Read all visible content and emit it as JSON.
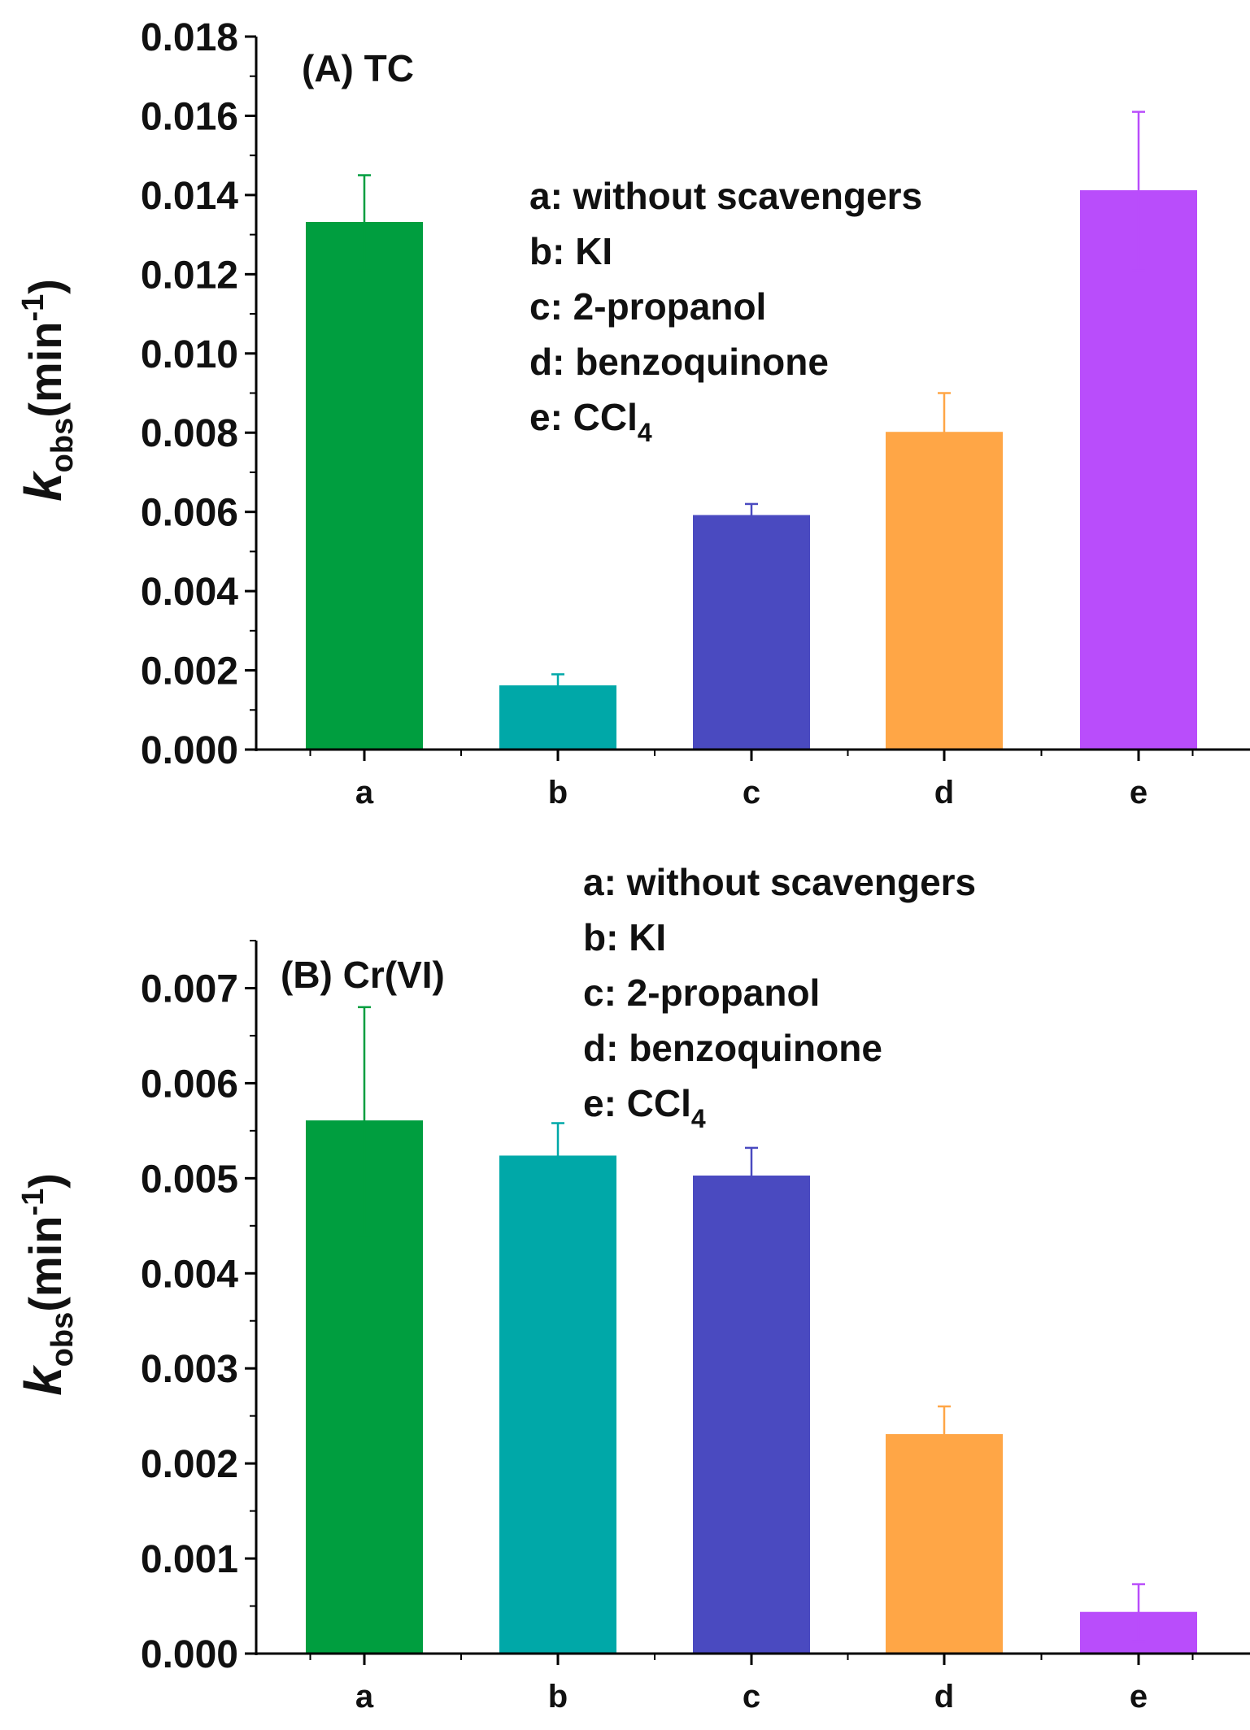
{
  "chart_data": [
    {
      "type": "bar",
      "panel_label": "(A) TC",
      "categories": [
        "a",
        "b",
        "c",
        "d",
        "e"
      ],
      "values": [
        0.0133,
        0.0016,
        0.0059,
        0.008,
        0.0141
      ],
      "errors": [
        0.0012,
        0.0003,
        0.0003,
        0.001,
        0.002
      ],
      "colors": [
        "#009e3f",
        "#00a8a8",
        "#4a4ac0",
        "#ffa646",
        "#b94dfb"
      ],
      "ylabel": {
        "main": "k",
        "sub": "obs",
        "unit_open": "(min",
        "sup": "-1",
        "unit_close": ")"
      },
      "ylim": [
        0,
        0.018
      ],
      "yticks": [
        0.0,
        0.002,
        0.004,
        0.006,
        0.008,
        0.01,
        0.012,
        0.014,
        0.016,
        0.018
      ],
      "ytick_labels": [
        "0.000",
        "0.002",
        "0.004",
        "0.006",
        "0.008",
        "0.010",
        "0.012",
        "0.014",
        "0.016",
        "0.018"
      ],
      "legend": [
        "a: without scavengers",
        "b: KI",
        "c: 2-propanol",
        "d: benzoquinone",
        "e: CCl"
      ],
      "legend_sub": "4",
      "legend_position": "top-right"
    },
    {
      "type": "bar",
      "panel_label": "(B) Cr(VI)",
      "categories": [
        "a",
        "b",
        "c",
        "d",
        "e"
      ],
      "values": [
        0.0056,
        0.00523,
        0.00502,
        0.0023,
        0.00043
      ],
      "errors": [
        0.0012,
        0.00035,
        0.0003,
        0.0003,
        0.0003
      ],
      "colors": [
        "#009e3f",
        "#00a8a8",
        "#4a4ac0",
        "#ffa646",
        "#b94dfb"
      ],
      "ylabel": {
        "main": "k",
        "sub": "obs",
        "unit_open": "(min",
        "sup": "-1",
        "unit_close": ")"
      },
      "ylim": [
        0,
        0.0075
      ],
      "yticks": [
        0.0,
        0.001,
        0.002,
        0.003,
        0.004,
        0.005,
        0.006,
        0.007
      ],
      "ytick_labels": [
        "0.000",
        "0.001",
        "0.002",
        "0.003",
        "0.004",
        "0.005",
        "0.006",
        "0.007"
      ],
      "legend": [
        "a: without scavengers",
        "b: KI",
        "c: 2-propanol",
        "d: benzoquinone",
        "e: CCl"
      ],
      "legend_sub": "4",
      "legend_position": "top-right"
    }
  ]
}
